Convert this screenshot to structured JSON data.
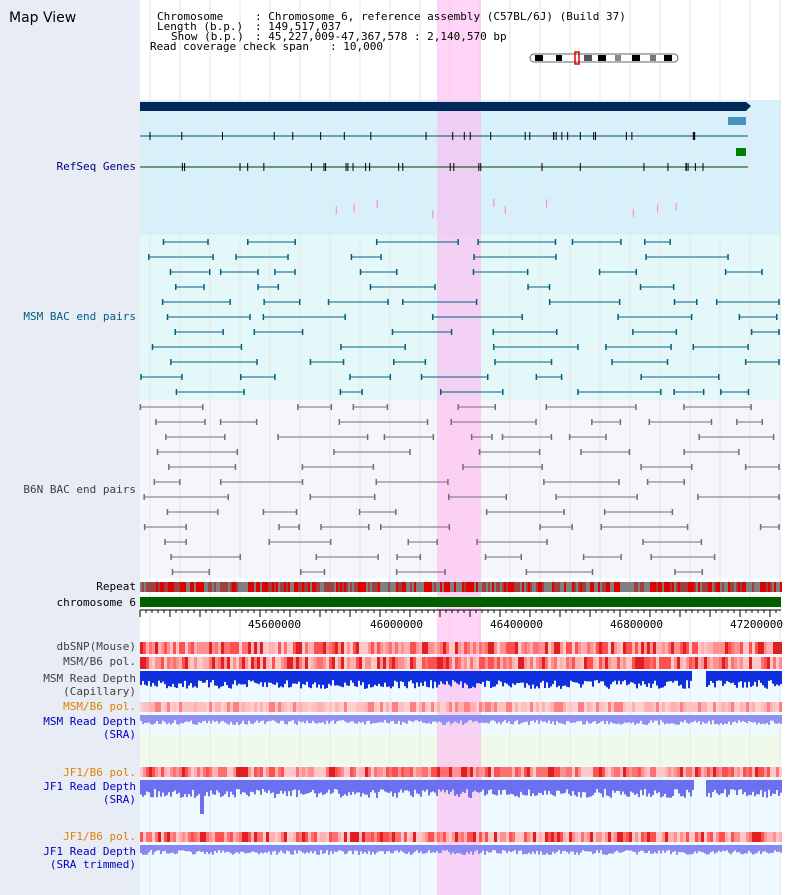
{
  "view_title": "Map View",
  "header": {
    "chromosome_label": "Chromosome",
    "chromosome_value": ": Chromosome 6, reference assembly (C57BL/6J) (Build 37)",
    "length_label": "Length (b.p.)",
    "length_value": ": 149,517,037",
    "show_label": "Show (b.p.)",
    "show_value": ": 45,227,009-47,367,578 : 2,140,570 bp",
    "coverage_label": "Read coverage check span",
    "coverage_value": ": 10,000"
  },
  "tracks": {
    "refseq": "RefSeq Genes",
    "msm_bac": "MSM BAC end pairs",
    "b6n_bac": "B6N BAC end pairs",
    "repeat": "Repeat",
    "chromosome": "chromosome 6",
    "dbsnp": "dbSNP(Mouse)",
    "msm_b6_pol": "MSM/B6 pol.",
    "msm_depth_cap_1": "MSM Read Depth",
    "msm_depth_cap_2": "(Capillary)",
    "msm_b6_pol_2": "MSM/B6 pol.",
    "msm_depth_sra_1": "MSM Read Depth",
    "msm_depth_sra_2": "(SRA)",
    "jf1_b6_pol": "JF1/B6 pol.",
    "jf1_depth_sra_1": "JF1 Read Depth",
    "jf1_depth_sra_2": "(SRA)",
    "jf1_b6_pol_2": "JF1/B6 pol.",
    "jf1_depth_trim_1": "JF1 Read Depth",
    "jf1_depth_trim_2": "(SRA trimmed)"
  },
  "ruler": {
    "ticks": [
      "45600000",
      "46000000",
      "46400000",
      "46800000",
      "47200000"
    ]
  },
  "colors": {
    "refseq_label": "#000080",
    "msm_label": "#006080",
    "b6n_label": "#404040",
    "msm_pol_orange": "#e08000",
    "depth_blue": "#0000c0",
    "highlight": "#ffb8f0",
    "chromosome_green": "#006000"
  }
}
